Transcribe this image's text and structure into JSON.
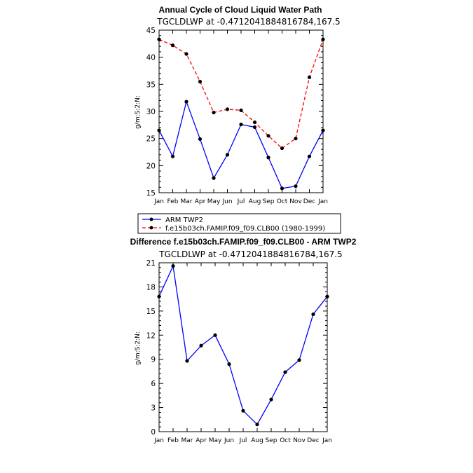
{
  "chart_data": [
    {
      "type": "line",
      "title": "Annual Cycle of Cloud Liquid Water Path",
      "subtitle": "TGCLDLWP  at  -0.4712041884816784,167.5",
      "ylabel": "g/m:S:2:N:",
      "xlabel": "",
      "categories": [
        "Jan",
        "Feb",
        "Mar",
        "Apr",
        "May",
        "Jun",
        "Jul",
        "Aug",
        "Sep",
        "Oct",
        "Nov",
        "Dec",
        "Jan"
      ],
      "ylim": [
        15,
        45
      ],
      "yticks": [
        15,
        20,
        25,
        30,
        35,
        40,
        45
      ],
      "series": [
        {
          "name": "ARM TWP2",
          "color": "#0000ff",
          "dash": "solid",
          "values": [
            26.5,
            21.7,
            31.8,
            24.9,
            17.7,
            22.0,
            27.6,
            27.1,
            21.5,
            15.8,
            16.2,
            21.7,
            26.5
          ]
        },
        {
          "name": "f.e15b03ch.FAMIP.f09_f09.CLB00 (1980-1999)",
          "color": "#ff0000",
          "dash": "dashed",
          "values": [
            43.3,
            42.2,
            40.6,
            35.5,
            29.8,
            30.4,
            30.2,
            28.0,
            25.5,
            23.2,
            25.0,
            36.3,
            43.3
          ]
        }
      ],
      "legend": "below"
    },
    {
      "type": "line",
      "title": "Difference f.e15b03ch.FAMIP.f09_f09.CLB00 - ARM TWP2",
      "subtitle": "TGCLDLWP  at  -0.4712041884816784,167.5",
      "ylabel": "g/m:S:2:N:",
      "xlabel": "",
      "categories": [
        "Jan",
        "Feb",
        "Mar",
        "Apr",
        "May",
        "Jun",
        "Jul",
        "Aug",
        "Sep",
        "Oct",
        "Nov",
        "Dec",
        "Jan"
      ],
      "ylim": [
        0,
        21
      ],
      "yticks": [
        0,
        3,
        6,
        9,
        12,
        15,
        18,
        21
      ],
      "series": [
        {
          "color": "#0000ff",
          "dash": "solid",
          "values": [
            16.8,
            20.6,
            8.8,
            10.7,
            12.0,
            8.4,
            2.6,
            0.9,
            4.0,
            7.4,
            8.9,
            14.6,
            16.8
          ]
        }
      ]
    }
  ]
}
